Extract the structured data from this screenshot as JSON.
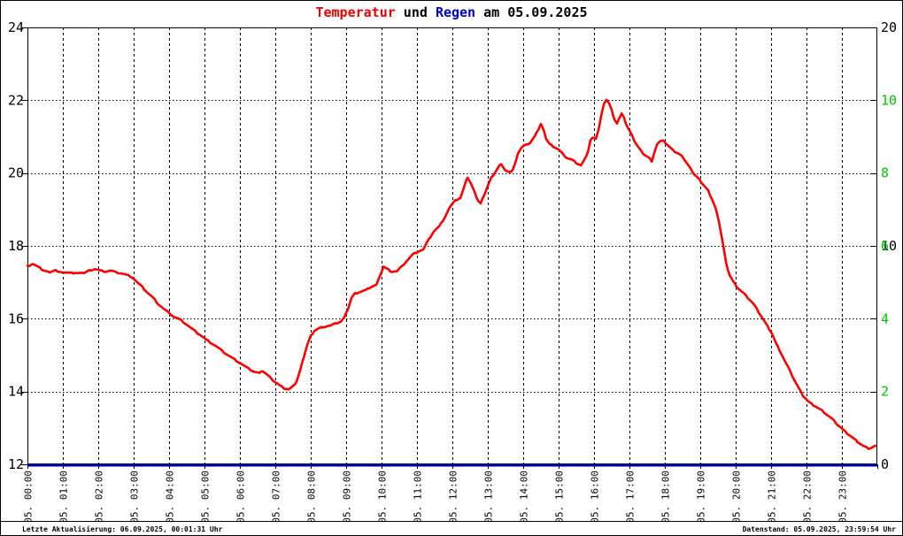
{
  "title": {
    "part_temperature": "Temperatur",
    "part_conjunction": " und ",
    "part_rain": "Regen",
    "part_date": " am 05.09.2025"
  },
  "colors": {
    "temperature_line": "#ff0000",
    "rain_line": "#0000aa",
    "title_red": "#ee0000",
    "title_blue": "#0000cc",
    "axis_text": "#000000",
    "rain_axis_green": "#00c400",
    "grid": "#000000",
    "background": "#ffffff"
  },
  "status_bar": {
    "left": "Letzte Aktualisierung: 06.09.2025, 00:01:31 Uhr",
    "right": "Datenstand: 05.09.2025, 23:59:54 Uhr"
  },
  "chart_data": {
    "type": "line",
    "title": "Temperatur und Regen am 05.09.2025",
    "grid": true,
    "legend": "none",
    "x_axis": {
      "hours_range": [
        0,
        24
      ],
      "gridline_every_hours": 1,
      "labels": [
        "05. 00:00",
        "05. 01:00",
        "05. 02:00",
        "05. 03:00",
        "05. 04:00",
        "05. 05:00",
        "05. 06:00",
        "05. 07:00",
        "05. 08:00",
        "05. 09:00",
        "05. 10:00",
        "05. 11:00",
        "05. 12:00",
        "05. 13:00",
        "05. 14:00",
        "05. 15:00",
        "05. 16:00",
        "05. 17:00",
        "05. 18:00",
        "05. 19:00",
        "05. 20:00",
        "05. 21:00",
        "05. 22:00",
        "05. 23:00"
      ]
    },
    "y_axis_left": {
      "unit": "°C",
      "range": [
        12,
        24
      ],
      "labels": [
        "24",
        "22",
        "20",
        "18",
        "16",
        "14",
        "12"
      ],
      "color": "#000000"
    },
    "y_axis_right": {
      "unit": "mm",
      "labels": [
        {
          "text": "20",
          "color": "#000000"
        },
        {
          "text": "10",
          "color": "#00c400"
        },
        {
          "text": "8",
          "color": "#00c400"
        },
        {
          "text": "6",
          "color": "#00c400",
          "underlay": "10",
          "underlay_color": "#000000"
        },
        {
          "text": "4",
          "color": "#00c400"
        },
        {
          "text": "2",
          "color": "#00c400"
        },
        {
          "text": "0",
          "color": "#000000"
        }
      ]
    },
    "series": [
      {
        "name": "Temperatur",
        "unit": "°C",
        "color": "#ff0000",
        "min": 12.4,
        "max": 22.0,
        "points": [
          [
            0.0,
            17.44
          ],
          [
            0.15,
            17.51
          ],
          [
            0.3,
            17.42
          ],
          [
            0.45,
            17.34
          ],
          [
            0.63,
            17.27
          ],
          [
            0.8,
            17.32
          ],
          [
            1.0,
            17.27
          ],
          [
            1.2,
            17.25
          ],
          [
            1.4,
            17.27
          ],
          [
            1.6,
            17.25
          ],
          [
            1.75,
            17.32
          ],
          [
            1.9,
            17.37
          ],
          [
            2.05,
            17.32
          ],
          [
            2.2,
            17.3
          ],
          [
            2.35,
            17.32
          ],
          [
            2.5,
            17.27
          ],
          [
            2.65,
            17.25
          ],
          [
            2.8,
            17.2
          ],
          [
            2.95,
            17.15
          ],
          [
            3.1,
            17.0
          ],
          [
            3.25,
            16.86
          ],
          [
            3.4,
            16.71
          ],
          [
            3.55,
            16.57
          ],
          [
            3.7,
            16.4
          ],
          [
            3.85,
            16.27
          ],
          [
            4.0,
            16.15
          ],
          [
            4.15,
            16.05
          ],
          [
            4.3,
            15.98
          ],
          [
            4.45,
            15.88
          ],
          [
            4.6,
            15.76
          ],
          [
            4.75,
            15.64
          ],
          [
            4.9,
            15.54
          ],
          [
            5.05,
            15.42
          ],
          [
            5.2,
            15.33
          ],
          [
            5.35,
            15.23
          ],
          [
            5.5,
            15.11
          ],
          [
            5.65,
            15.01
          ],
          [
            5.8,
            14.91
          ],
          [
            5.95,
            14.82
          ],
          [
            6.1,
            14.72
          ],
          [
            6.25,
            14.62
          ],
          [
            6.4,
            14.55
          ],
          [
            6.55,
            14.5
          ],
          [
            6.65,
            14.57
          ],
          [
            6.75,
            14.48
          ],
          [
            6.88,
            14.35
          ],
          [
            7.0,
            14.26
          ],
          [
            7.13,
            14.16
          ],
          [
            7.25,
            14.09
          ],
          [
            7.38,
            14.06
          ],
          [
            7.5,
            14.14
          ],
          [
            7.6,
            14.28
          ],
          [
            7.7,
            14.57
          ],
          [
            7.8,
            14.94
          ],
          [
            7.9,
            15.28
          ],
          [
            8.0,
            15.52
          ],
          [
            8.1,
            15.67
          ],
          [
            8.25,
            15.74
          ],
          [
            8.4,
            15.79
          ],
          [
            8.55,
            15.81
          ],
          [
            8.7,
            15.86
          ],
          [
            8.85,
            15.93
          ],
          [
            8.95,
            16.03
          ],
          [
            9.05,
            16.27
          ],
          [
            9.15,
            16.57
          ],
          [
            9.25,
            16.69
          ],
          [
            9.4,
            16.74
          ],
          [
            9.55,
            16.78
          ],
          [
            9.7,
            16.88
          ],
          [
            9.85,
            16.93
          ],
          [
            9.95,
            17.15
          ],
          [
            10.05,
            17.44
          ],
          [
            10.15,
            17.37
          ],
          [
            10.28,
            17.3
          ],
          [
            10.43,
            17.3
          ],
          [
            10.58,
            17.44
          ],
          [
            10.73,
            17.61
          ],
          [
            10.88,
            17.76
          ],
          [
            11.03,
            17.85
          ],
          [
            11.18,
            17.9
          ],
          [
            11.33,
            18.17
          ],
          [
            11.48,
            18.41
          ],
          [
            11.63,
            18.53
          ],
          [
            11.78,
            18.78
          ],
          [
            11.93,
            19.07
          ],
          [
            12.08,
            19.24
          ],
          [
            12.23,
            19.33
          ],
          [
            12.35,
            19.67
          ],
          [
            12.43,
            19.89
          ],
          [
            12.53,
            19.7
          ],
          [
            12.63,
            19.46
          ],
          [
            12.73,
            19.24
          ],
          [
            12.8,
            19.16
          ],
          [
            12.9,
            19.41
          ],
          [
            13.0,
            19.65
          ],
          [
            13.1,
            19.87
          ],
          [
            13.2,
            20.01
          ],
          [
            13.3,
            20.16
          ],
          [
            13.38,
            20.26
          ],
          [
            13.48,
            20.09
          ],
          [
            13.6,
            20.01
          ],
          [
            13.7,
            20.09
          ],
          [
            13.78,
            20.28
          ],
          [
            13.85,
            20.55
          ],
          [
            13.95,
            20.7
          ],
          [
            14.08,
            20.77
          ],
          [
            14.2,
            20.84
          ],
          [
            14.33,
            21.01
          ],
          [
            14.43,
            21.21
          ],
          [
            14.5,
            21.35
          ],
          [
            14.58,
            21.16
          ],
          [
            14.65,
            20.94
          ],
          [
            14.75,
            20.79
          ],
          [
            14.88,
            20.72
          ],
          [
            15.0,
            20.65
          ],
          [
            15.13,
            20.5
          ],
          [
            15.25,
            20.41
          ],
          [
            15.38,
            20.36
          ],
          [
            15.5,
            20.28
          ],
          [
            15.63,
            20.21
          ],
          [
            15.73,
            20.36
          ],
          [
            15.83,
            20.6
          ],
          [
            15.9,
            20.89
          ],
          [
            15.98,
            20.99
          ],
          [
            16.05,
            20.94
          ],
          [
            16.13,
            21.18
          ],
          [
            16.2,
            21.57
          ],
          [
            16.28,
            21.89
          ],
          [
            16.35,
            22.03
          ],
          [
            16.43,
            21.91
          ],
          [
            16.5,
            21.72
          ],
          [
            16.58,
            21.47
          ],
          [
            16.65,
            21.35
          ],
          [
            16.73,
            21.55
          ],
          [
            16.78,
            21.64
          ],
          [
            16.85,
            21.5
          ],
          [
            16.93,
            21.3
          ],
          [
            17.03,
            21.11
          ],
          [
            17.13,
            20.91
          ],
          [
            17.23,
            20.74
          ],
          [
            17.33,
            20.6
          ],
          [
            17.43,
            20.5
          ],
          [
            17.53,
            20.43
          ],
          [
            17.63,
            20.33
          ],
          [
            17.7,
            20.55
          ],
          [
            17.78,
            20.77
          ],
          [
            17.85,
            20.87
          ],
          [
            17.93,
            20.89
          ],
          [
            18.03,
            20.82
          ],
          [
            18.13,
            20.72
          ],
          [
            18.23,
            20.62
          ],
          [
            18.33,
            20.57
          ],
          [
            18.43,
            20.5
          ],
          [
            18.53,
            20.41
          ],
          [
            18.63,
            20.26
          ],
          [
            18.73,
            20.11
          ],
          [
            18.83,
            19.97
          ],
          [
            18.93,
            19.87
          ],
          [
            19.03,
            19.75
          ],
          [
            19.13,
            19.63
          ],
          [
            19.23,
            19.5
          ],
          [
            19.33,
            19.29
          ],
          [
            19.43,
            19.04
          ],
          [
            19.53,
            18.66
          ],
          [
            19.63,
            18.12
          ],
          [
            19.73,
            17.52
          ],
          [
            19.83,
            17.2
          ],
          [
            19.93,
            17.02
          ],
          [
            20.03,
            16.88
          ],
          [
            20.15,
            16.76
          ],
          [
            20.28,
            16.64
          ],
          [
            20.4,
            16.52
          ],
          [
            20.53,
            16.37
          ],
          [
            20.65,
            16.18
          ],
          [
            20.78,
            15.98
          ],
          [
            20.9,
            15.79
          ],
          [
            21.03,
            15.59
          ],
          [
            21.15,
            15.3
          ],
          [
            21.28,
            15.06
          ],
          [
            21.4,
            14.82
          ],
          [
            21.53,
            14.57
          ],
          [
            21.65,
            14.33
          ],
          [
            21.78,
            14.09
          ],
          [
            21.9,
            13.89
          ],
          [
            22.03,
            13.75
          ],
          [
            22.15,
            13.65
          ],
          [
            22.28,
            13.58
          ],
          [
            22.4,
            13.5
          ],
          [
            22.53,
            13.41
          ],
          [
            22.65,
            13.31
          ],
          [
            22.78,
            13.19
          ],
          [
            22.9,
            13.07
          ],
          [
            23.03,
            12.95
          ],
          [
            23.15,
            12.85
          ],
          [
            23.28,
            12.75
          ],
          [
            23.4,
            12.65
          ],
          [
            23.53,
            12.56
          ],
          [
            23.65,
            12.48
          ],
          [
            23.75,
            12.44
          ],
          [
            23.85,
            12.46
          ],
          [
            23.95,
            12.51
          ]
        ]
      },
      {
        "name": "Regen",
        "unit": "mm",
        "color": "#0000aa",
        "constant_value": 0,
        "points": [
          [
            0,
            0
          ],
          [
            24,
            0
          ]
        ]
      }
    ]
  }
}
